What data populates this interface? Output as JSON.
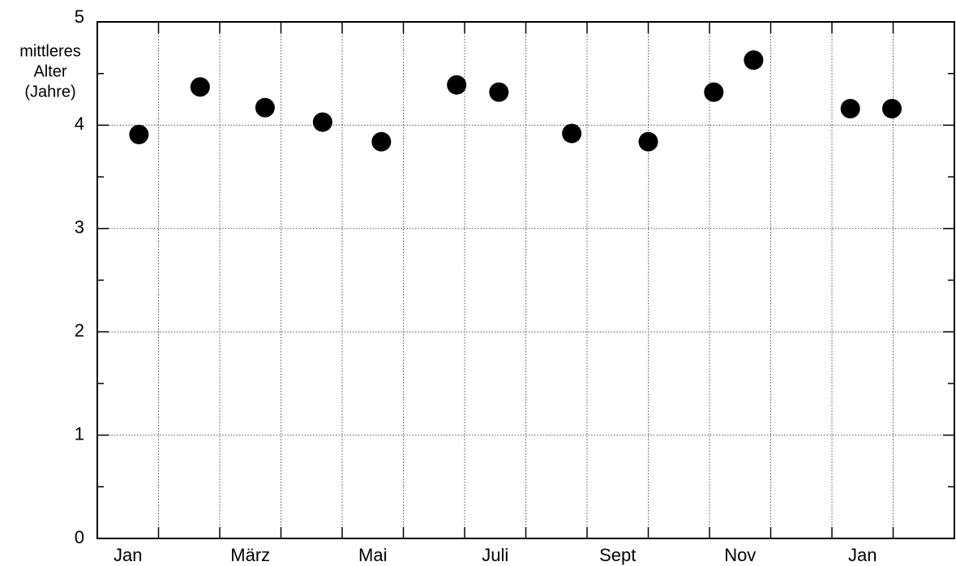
{
  "chart_data": {
    "type": "scatter",
    "ylabel": [
      "mittleres",
      "Alter",
      "(Jahre)"
    ],
    "categories": [
      "Jan",
      null,
      "März",
      null,
      "Mai",
      null,
      "Juli",
      null,
      "Sept",
      null,
      "Nov",
      null,
      "Jan",
      null
    ],
    "xlim": [
      0,
      14
    ],
    "x": [
      0.68,
      1.68,
      2.74,
      3.68,
      4.64,
      5.87,
      6.56,
      7.75,
      9.0,
      10.07,
      10.72,
      12.3,
      12.98
    ],
    "values": [
      3.91,
      4.37,
      4.17,
      4.03,
      3.84,
      4.39,
      4.32,
      3.92,
      3.84,
      4.32,
      4.63,
      4.16,
      4.16
    ],
    "color": "#000000",
    "ylim": [
      0,
      5
    ],
    "yticks": [
      0,
      1,
      2,
      3,
      4,
      5
    ],
    "yminorticks": [
      0.5,
      1.5,
      2.5,
      3.5,
      4.5
    ],
    "grid": true
  }
}
